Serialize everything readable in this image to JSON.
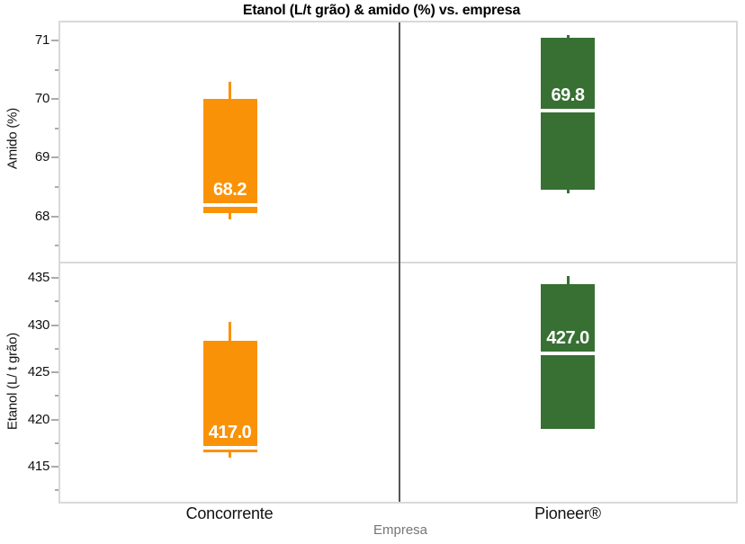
{
  "chart_data": {
    "type": "box",
    "title": "Etanol (L/t grão) & amido (%) vs. empresa",
    "xlabel": "Empresa",
    "categories": [
      "Concorrente",
      "Pioneer®"
    ],
    "colors": {
      "concorrente": "#FA9208",
      "pioneer": "#377032"
    },
    "legend": "none",
    "grid": "off",
    "panels": [
      {
        "ylabel": "Amido (%)",
        "ylim": [
          67.21,
          71.31
        ],
        "yticks": [
          71,
          70,
          69,
          68
        ],
        "yticks_minor": [
          70.5,
          69.5,
          68.5,
          67.5
        ],
        "boxes": [
          {
            "category": "Concorrente",
            "color_key": "concorrente",
            "whisker_low": 67.95,
            "q1": 68.06,
            "median": 68.2,
            "q3": 70.0,
            "whisker_high": 70.3,
            "label": "68.2"
          },
          {
            "category": "Pioneer®",
            "color_key": "pioneer",
            "whisker_low": 68.4,
            "q1": 68.45,
            "median": 69.8,
            "q3": 71.05,
            "whisker_high": 71.1,
            "label": "69.8"
          }
        ]
      },
      {
        "ylabel": "Etanol (L/ t grão)",
        "ylim": [
          411.29,
          436.62
        ],
        "yticks": [
          435,
          430,
          425,
          420,
          415
        ],
        "yticks_minor": [
          432.5,
          427.5,
          422.5,
          417.5,
          412.5
        ],
        "boxes": [
          {
            "category": "Concorrente",
            "color_key": "concorrente",
            "whisker_low": 416.0,
            "q1": 416.5,
            "median": 417.0,
            "q3": 428.3,
            "whisker_high": 430.3,
            "label": "417.0"
          },
          {
            "category": "Pioneer®",
            "color_key": "pioneer",
            "whisker_low": 419.0,
            "q1": 419.0,
            "median": 427.0,
            "q3": 434.3,
            "whisker_high": 435.2,
            "label": "427.0"
          }
        ]
      }
    ]
  }
}
